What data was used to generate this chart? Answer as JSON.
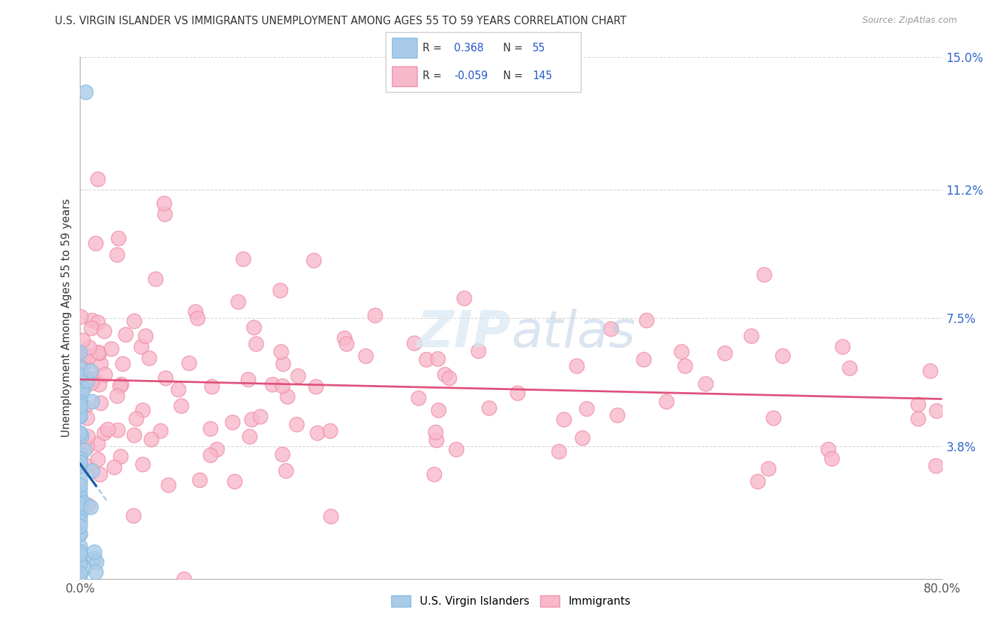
{
  "title": "U.S. VIRGIN ISLANDER VS IMMIGRANTS UNEMPLOYMENT AMONG AGES 55 TO 59 YEARS CORRELATION CHART",
  "source": "Source: ZipAtlas.com",
  "ylabel": "Unemployment Among Ages 55 to 59 years",
  "xlim": [
    0.0,
    0.8
  ],
  "ylim": [
    0.0,
    0.15
  ],
  "ytick_values": [
    0.0,
    0.038,
    0.075,
    0.112,
    0.15
  ],
  "ytick_labels": [
    "",
    "3.8%",
    "7.5%",
    "11.2%",
    "15.0%"
  ],
  "blue_R": 0.368,
  "blue_N": 55,
  "pink_R": -0.059,
  "pink_N": 145,
  "blue_face_color": "#aacce8",
  "blue_edge_color": "#88bbe0",
  "pink_face_color": "#f8b8cc",
  "pink_edge_color": "#f090a8",
  "blue_line_color": "#1a5fa8",
  "blue_dash_color": "#88bbe0",
  "pink_line_color": "#e0507a",
  "grid_color": "#cccccc",
  "title_color": "#333333",
  "source_color": "#999999",
  "label_color": "#333333",
  "right_tick_color": "#3366cc",
  "watermark": "ZIPatlas",
  "watermark_color": "#d0dff0"
}
